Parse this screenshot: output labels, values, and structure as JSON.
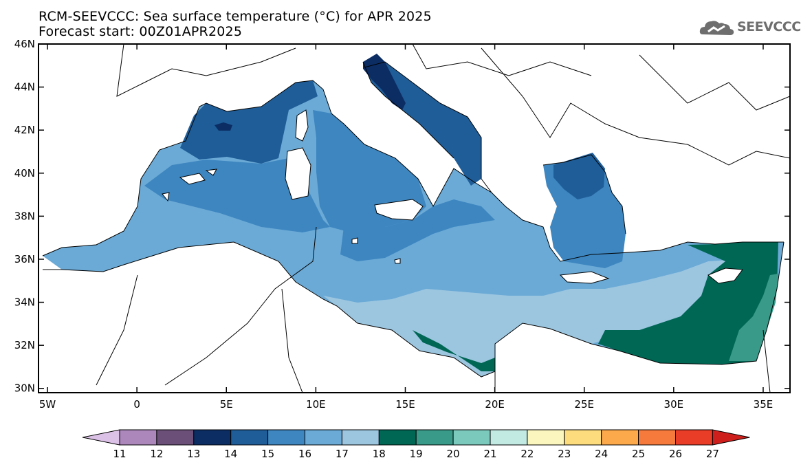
{
  "header": {
    "title_line1": "RCM-SEEVCCC: Sea surface temperature (°C) for APR 2025",
    "title_line2": "Forecast start: 00Z01APR2025"
  },
  "logo": {
    "text": "SEEVCCC",
    "icon": "cloud-icon",
    "color": "#6e6e6e"
  },
  "map": {
    "lon_range": [
      -5.5,
      36.5
    ],
    "lat_range": [
      29.8,
      46
    ],
    "lon_ticks": [
      {
        "value": -5,
        "label": "5W"
      },
      {
        "value": 0,
        "label": "0"
      },
      {
        "value": 5,
        "label": "5E"
      },
      {
        "value": 10,
        "label": "10E"
      },
      {
        "value": 15,
        "label": "15E"
      },
      {
        "value": 20,
        "label": "20E"
      },
      {
        "value": 25,
        "label": "25E"
      },
      {
        "value": 30,
        "label": "30E"
      },
      {
        "value": 35,
        "label": "35E"
      }
    ],
    "lat_ticks": [
      {
        "value": 30,
        "label": "30N"
      },
      {
        "value": 32,
        "label": "32N"
      },
      {
        "value": 34,
        "label": "34N"
      },
      {
        "value": 36,
        "label": "36N"
      },
      {
        "value": 38,
        "label": "38N"
      },
      {
        "value": 40,
        "label": "40N"
      },
      {
        "value": 42,
        "label": "42N"
      },
      {
        "value": 44,
        "label": "44N"
      },
      {
        "value": 46,
        "label": "46N"
      }
    ],
    "regions": [
      {
        "name": "sea-base-17",
        "class": 17
      },
      {
        "name": "western-med-16",
        "class": 16
      },
      {
        "name": "ligurian-gulf-of-lion-15",
        "class": 15
      },
      {
        "name": "gulf-of-lion-core-14",
        "class": 14
      },
      {
        "name": "tyrrhenian-16",
        "class": 16
      },
      {
        "name": "adriatic-15",
        "class": 15
      },
      {
        "name": "northern-adriatic-14",
        "class": 14
      },
      {
        "name": "aegean-16",
        "class": 16
      },
      {
        "name": "north-aegean-15",
        "class": 15
      },
      {
        "name": "central-med-16",
        "class": 16
      },
      {
        "name": "ionian-17",
        "class": 17
      },
      {
        "name": "south-central-18",
        "class": 18
      },
      {
        "name": "levantine-19",
        "class": 19
      },
      {
        "name": "levantine-coast-20",
        "class": 20
      }
    ]
  },
  "colorbar": {
    "labels": [
      "11",
      "12",
      "13",
      "14",
      "15",
      "16",
      "17",
      "18",
      "19",
      "20",
      "21",
      "22",
      "23",
      "24",
      "25",
      "26",
      "27"
    ],
    "colors": [
      "#dcc1e6",
      "#ab87bc",
      "#6b4f78",
      "#0b2d64",
      "#1f5d98",
      "#3d86c0",
      "#6baad6",
      "#9cc6e0",
      "#016755",
      "#399a89",
      "#7bc8bc",
      "#c2e9e2",
      "#fbf6bd",
      "#fddc7e",
      "#fba94b",
      "#f67a3b",
      "#ea3d28",
      "#ce1f1d"
    ]
  }
}
